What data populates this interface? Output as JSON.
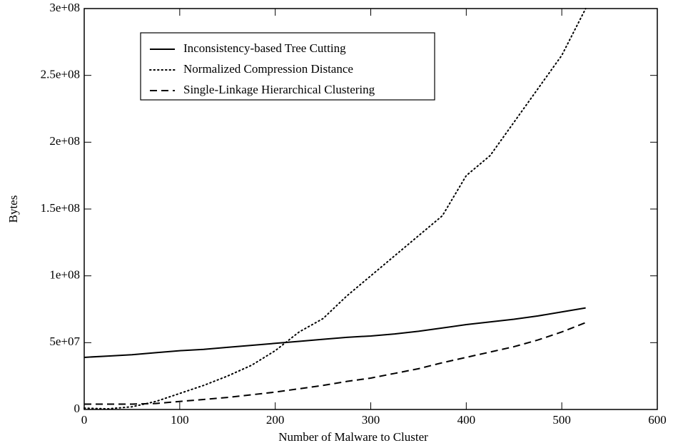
{
  "chart_data": {
    "type": "line",
    "xlabel": "Number of Malware to Cluster",
    "ylabel": "Bytes",
    "x": [
      0,
      25,
      50,
      75,
      100,
      125,
      150,
      175,
      200,
      225,
      250,
      275,
      300,
      325,
      350,
      375,
      400,
      425,
      450,
      475,
      500,
      525
    ],
    "series": [
      {
        "name": "Inconsistency-based Tree Cutting",
        "color": "#000000",
        "style": "solid",
        "values": [
          39000000,
          40000000,
          41000000,
          42500000,
          44000000,
          45000000,
          46500000,
          48000000,
          49500000,
          51000000,
          52500000,
          54000000,
          55000000,
          56500000,
          58500000,
          61000000,
          63500000,
          65500000,
          67500000,
          70000000,
          73000000,
          76000000
        ]
      },
      {
        "name": "Normalized Compression Distance",
        "color": "#000000",
        "style": "dotted",
        "values": [
          1000000,
          500000,
          2000000,
          6000000,
          12000000,
          18000000,
          25000000,
          33000000,
          44000000,
          58000000,
          68000000,
          85000000,
          100000000,
          115000000,
          130000000,
          145000000,
          175000000,
          190000000,
          215000000,
          240000000,
          265000000,
          300000000
        ]
      },
      {
        "name": "Single-Linkage Hierarchical Clustering",
        "color": "#000000",
        "style": "dashed",
        "values": [
          4000000,
          4000000,
          4000000,
          4500000,
          6000000,
          7500000,
          9000000,
          11000000,
          13000000,
          15500000,
          18000000,
          21000000,
          23500000,
          27000000,
          30500000,
          35000000,
          39000000,
          43000000,
          47000000,
          52000000,
          58000000,
          65000000
        ]
      }
    ],
    "xlim": [
      0,
      600
    ],
    "xticks": [
      0,
      100,
      200,
      300,
      400,
      500,
      600
    ],
    "ylim": [
      0,
      300000000
    ],
    "yticks": [
      0,
      {
        "value": 50000000,
        "label": "5e+07"
      },
      {
        "value": 100000000,
        "label": "1e+08"
      },
      {
        "value": 150000000,
        "label": "1.5e+08"
      },
      {
        "value": 200000000,
        "label": "2e+08"
      },
      {
        "value": 250000000,
        "label": "2.5e+08"
      },
      {
        "value": 300000000,
        "label": "3e+08"
      }
    ],
    "grid": false,
    "legend": "upper left"
  }
}
